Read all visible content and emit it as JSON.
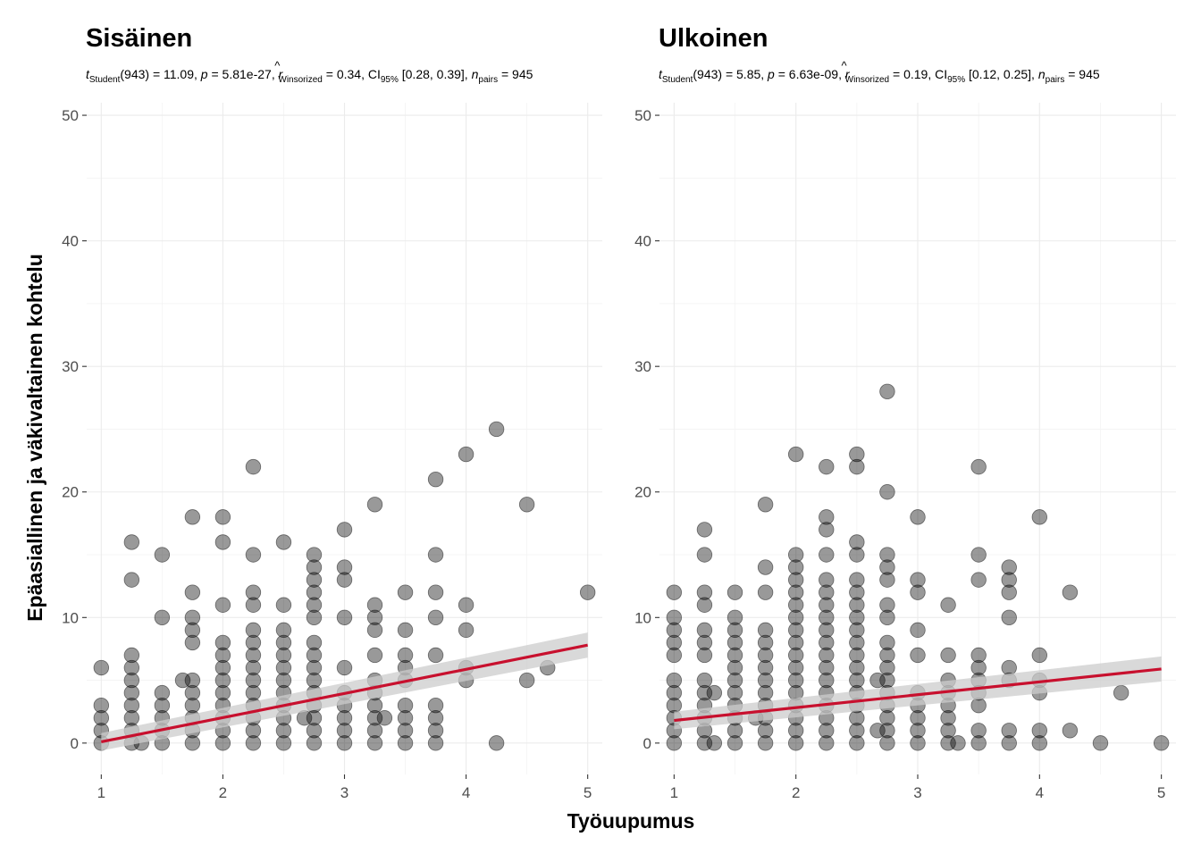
{
  "chart_data": {
    "type": "scatter",
    "xlabel": "Työuupumus",
    "ylabel": "Epäasiallinen ja väkivaltainen kohtelu",
    "xlim": [
      0.88,
      5.12
    ],
    "ylim": [
      -2.5,
      51
    ],
    "x_ticks": [
      "1",
      "2",
      "3",
      "4",
      "5"
    ],
    "y_ticks": [
      "0",
      "10",
      "20",
      "30",
      "40",
      "50"
    ],
    "grid": true,
    "point_color": "#000000",
    "point_opacity": 0.4,
    "fit_color": "#c8102e",
    "ci_color": "#cccccc",
    "panels": [
      {
        "title": "Sisäinen",
        "subtitle": {
          "t_main": "t",
          "t_sub": "Student",
          "t_val": "(943) = 11.09, ",
          "p_main": "p",
          "p_val": " = 5.81e-27, ",
          "r_main": "r",
          "r_hat": "^",
          "r_sub": "Winsorized",
          "r_val": " = 0.34, CI",
          "ci_sub": "95%",
          "ci_val": " [0.28, 0.39], ",
          "n_main": "n",
          "n_sub": "pairs",
          "n_val": " = 945"
        },
        "fit": {
          "x0": 1,
          "y0": 0.1,
          "x1": 5,
          "y1": 7.8,
          "ci0": 0.7,
          "ci1": 1.0
        },
        "points": [
          [
            1,
            0
          ],
          [
            1,
            1
          ],
          [
            1,
            2
          ],
          [
            1,
            3
          ],
          [
            1,
            6
          ],
          [
            1.25,
            0
          ],
          [
            1.25,
            1
          ],
          [
            1.25,
            2
          ],
          [
            1.25,
            3
          ],
          [
            1.25,
            4
          ],
          [
            1.25,
            5
          ],
          [
            1.25,
            6
          ],
          [
            1.25,
            7
          ],
          [
            1.25,
            13
          ],
          [
            1.25,
            16
          ],
          [
            1.33,
            0
          ],
          [
            1.5,
            0
          ],
          [
            1.5,
            1
          ],
          [
            1.5,
            2
          ],
          [
            1.5,
            3
          ],
          [
            1.5,
            4
          ],
          [
            1.5,
            10
          ],
          [
            1.5,
            15
          ],
          [
            1.67,
            5
          ],
          [
            1.75,
            0
          ],
          [
            1.75,
            1
          ],
          [
            1.75,
            2
          ],
          [
            1.75,
            3
          ],
          [
            1.75,
            4
          ],
          [
            1.75,
            5
          ],
          [
            1.75,
            8
          ],
          [
            1.75,
            9
          ],
          [
            1.75,
            10
          ],
          [
            1.75,
            12
          ],
          [
            1.75,
            18
          ],
          [
            2,
            0
          ],
          [
            2,
            1
          ],
          [
            2,
            2
          ],
          [
            2,
            3
          ],
          [
            2,
            4
          ],
          [
            2,
            5
          ],
          [
            2,
            6
          ],
          [
            2,
            7
          ],
          [
            2,
            8
          ],
          [
            2,
            11
          ],
          [
            2,
            16
          ],
          [
            2,
            18
          ],
          [
            2.25,
            0
          ],
          [
            2.25,
            1
          ],
          [
            2.25,
            2
          ],
          [
            2.25,
            3
          ],
          [
            2.25,
            4
          ],
          [
            2.25,
            5
          ],
          [
            2.25,
            6
          ],
          [
            2.25,
            7
          ],
          [
            2.25,
            8
          ],
          [
            2.25,
            9
          ],
          [
            2.25,
            11
          ],
          [
            2.25,
            12
          ],
          [
            2.25,
            15
          ],
          [
            2.25,
            22
          ],
          [
            2.5,
            0
          ],
          [
            2.5,
            1
          ],
          [
            2.5,
            2
          ],
          [
            2.5,
            3
          ],
          [
            2.5,
            4
          ],
          [
            2.5,
            5
          ],
          [
            2.5,
            6
          ],
          [
            2.5,
            7
          ],
          [
            2.5,
            8
          ],
          [
            2.5,
            9
          ],
          [
            2.5,
            11
          ],
          [
            2.5,
            16
          ],
          [
            2.67,
            2
          ],
          [
            2.75,
            0
          ],
          [
            2.75,
            1
          ],
          [
            2.75,
            2
          ],
          [
            2.75,
            3
          ],
          [
            2.75,
            4
          ],
          [
            2.75,
            5
          ],
          [
            2.75,
            6
          ],
          [
            2.75,
            7
          ],
          [
            2.75,
            8
          ],
          [
            2.75,
            10
          ],
          [
            2.75,
            11
          ],
          [
            2.75,
            12
          ],
          [
            2.75,
            13
          ],
          [
            2.75,
            14
          ],
          [
            2.75,
            15
          ],
          [
            3,
            0
          ],
          [
            3,
            1
          ],
          [
            3,
            2
          ],
          [
            3,
            3
          ],
          [
            3,
            4
          ],
          [
            3,
            6
          ],
          [
            3,
            10
          ],
          [
            3,
            13
          ],
          [
            3,
            14
          ],
          [
            3,
            17
          ],
          [
            3.25,
            0
          ],
          [
            3.25,
            1
          ],
          [
            3.25,
            2
          ],
          [
            3.25,
            3
          ],
          [
            3.25,
            4
          ],
          [
            3.25,
            5
          ],
          [
            3.25,
            7
          ],
          [
            3.25,
            9
          ],
          [
            3.25,
            10
          ],
          [
            3.25,
            11
          ],
          [
            3.25,
            19
          ],
          [
            3.33,
            2
          ],
          [
            3.5,
            0
          ],
          [
            3.5,
            1
          ],
          [
            3.5,
            2
          ],
          [
            3.5,
            3
          ],
          [
            3.5,
            5
          ],
          [
            3.5,
            6
          ],
          [
            3.5,
            7
          ],
          [
            3.5,
            9
          ],
          [
            3.5,
            12
          ],
          [
            3.75,
            0
          ],
          [
            3.75,
            1
          ],
          [
            3.75,
            2
          ],
          [
            3.75,
            3
          ],
          [
            3.75,
            7
          ],
          [
            3.75,
            10
          ],
          [
            3.75,
            12
          ],
          [
            3.75,
            15
          ],
          [
            3.75,
            21
          ],
          [
            4,
            5
          ],
          [
            4,
            6
          ],
          [
            4,
            9
          ],
          [
            4,
            11
          ],
          [
            4,
            23
          ],
          [
            4.25,
            0
          ],
          [
            4.25,
            25
          ],
          [
            4.5,
            5
          ],
          [
            4.5,
            19
          ],
          [
            4.67,
            6
          ],
          [
            5,
            12
          ]
        ]
      },
      {
        "title": "Ulkoinen",
        "subtitle": {
          "t_main": "t",
          "t_sub": "Student",
          "t_val": "(943) = 5.85, ",
          "p_main": "p",
          "p_val": " = 6.63e-09, ",
          "r_main": "r",
          "r_hat": "^",
          "r_sub": "Winsorized",
          "r_val": " = 0.19, CI",
          "ci_sub": "95%",
          "ci_val": " [0.12, 0.25], ",
          "n_main": "n",
          "n_sub": "pairs",
          "n_val": " = 945"
        },
        "fit": {
          "x0": 1,
          "y0": 1.8,
          "x1": 5,
          "y1": 5.9,
          "ci0": 0.7,
          "ci1": 1.0
        },
        "points": [
          [
            1,
            0
          ],
          [
            1,
            1
          ],
          [
            1,
            2
          ],
          [
            1,
            3
          ],
          [
            1,
            4
          ],
          [
            1,
            5
          ],
          [
            1,
            7
          ],
          [
            1,
            8
          ],
          [
            1,
            9
          ],
          [
            1,
            10
          ],
          [
            1,
            12
          ],
          [
            1.25,
            0
          ],
          [
            1.25,
            1
          ],
          [
            1.25,
            2
          ],
          [
            1.25,
            3
          ],
          [
            1.25,
            4
          ],
          [
            1.25,
            5
          ],
          [
            1.25,
            7
          ],
          [
            1.25,
            8
          ],
          [
            1.25,
            9
          ],
          [
            1.25,
            11
          ],
          [
            1.25,
            12
          ],
          [
            1.25,
            15
          ],
          [
            1.25,
            17
          ],
          [
            1.33,
            0
          ],
          [
            1.33,
            4
          ],
          [
            1.5,
            0
          ],
          [
            1.5,
            1
          ],
          [
            1.5,
            2
          ],
          [
            1.5,
            3
          ],
          [
            1.5,
            4
          ],
          [
            1.5,
            5
          ],
          [
            1.5,
            6
          ],
          [
            1.5,
            7
          ],
          [
            1.5,
            8
          ],
          [
            1.5,
            9
          ],
          [
            1.5,
            10
          ],
          [
            1.5,
            12
          ],
          [
            1.67,
            2
          ],
          [
            1.75,
            0
          ],
          [
            1.75,
            1
          ],
          [
            1.75,
            2
          ],
          [
            1.75,
            3
          ],
          [
            1.75,
            4
          ],
          [
            1.75,
            5
          ],
          [
            1.75,
            6
          ],
          [
            1.75,
            7
          ],
          [
            1.75,
            8
          ],
          [
            1.75,
            9
          ],
          [
            1.75,
            12
          ],
          [
            1.75,
            14
          ],
          [
            1.75,
            19
          ],
          [
            2,
            0
          ],
          [
            2,
            1
          ],
          [
            2,
            2
          ],
          [
            2,
            3
          ],
          [
            2,
            4
          ],
          [
            2,
            5
          ],
          [
            2,
            6
          ],
          [
            2,
            7
          ],
          [
            2,
            8
          ],
          [
            2,
            9
          ],
          [
            2,
            10
          ],
          [
            2,
            11
          ],
          [
            2,
            12
          ],
          [
            2,
            13
          ],
          [
            2,
            14
          ],
          [
            2,
            15
          ],
          [
            2,
            23
          ],
          [
            2.25,
            0
          ],
          [
            2.25,
            1
          ],
          [
            2.25,
            2
          ],
          [
            2.25,
            3
          ],
          [
            2.25,
            4
          ],
          [
            2.25,
            5
          ],
          [
            2.25,
            6
          ],
          [
            2.25,
            7
          ],
          [
            2.25,
            8
          ],
          [
            2.25,
            9
          ],
          [
            2.25,
            10
          ],
          [
            2.25,
            11
          ],
          [
            2.25,
            12
          ],
          [
            2.25,
            13
          ],
          [
            2.25,
            15
          ],
          [
            2.25,
            17
          ],
          [
            2.25,
            18
          ],
          [
            2.25,
            22
          ],
          [
            2.5,
            0
          ],
          [
            2.5,
            1
          ],
          [
            2.5,
            2
          ],
          [
            2.5,
            3
          ],
          [
            2.5,
            4
          ],
          [
            2.5,
            5
          ],
          [
            2.5,
            6
          ],
          [
            2.5,
            7
          ],
          [
            2.5,
            8
          ],
          [
            2.5,
            9
          ],
          [
            2.5,
            10
          ],
          [
            2.5,
            11
          ],
          [
            2.5,
            12
          ],
          [
            2.5,
            13
          ],
          [
            2.5,
            15
          ],
          [
            2.5,
            16
          ],
          [
            2.5,
            22
          ],
          [
            2.5,
            23
          ],
          [
            2.67,
            1
          ],
          [
            2.67,
            5
          ],
          [
            2.75,
            0
          ],
          [
            2.75,
            1
          ],
          [
            2.75,
            2
          ],
          [
            2.75,
            3
          ],
          [
            2.75,
            4
          ],
          [
            2.75,
            5
          ],
          [
            2.75,
            6
          ],
          [
            2.75,
            7
          ],
          [
            2.75,
            8
          ],
          [
            2.75,
            10
          ],
          [
            2.75,
            11
          ],
          [
            2.75,
            13
          ],
          [
            2.75,
            14
          ],
          [
            2.75,
            15
          ],
          [
            2.75,
            20
          ],
          [
            2.75,
            28
          ],
          [
            3,
            0
          ],
          [
            3,
            1
          ],
          [
            3,
            2
          ],
          [
            3,
            3
          ],
          [
            3,
            4
          ],
          [
            3,
            7
          ],
          [
            3,
            9
          ],
          [
            3,
            12
          ],
          [
            3,
            13
          ],
          [
            3,
            18
          ],
          [
            3.25,
            0
          ],
          [
            3.25,
            1
          ],
          [
            3.25,
            2
          ],
          [
            3.25,
            3
          ],
          [
            3.25,
            4
          ],
          [
            3.25,
            5
          ],
          [
            3.25,
            7
          ],
          [
            3.25,
            11
          ],
          [
            3.33,
            0
          ],
          [
            3.5,
            0
          ],
          [
            3.5,
            1
          ],
          [
            3.5,
            3
          ],
          [
            3.5,
            4
          ],
          [
            3.5,
            5
          ],
          [
            3.5,
            6
          ],
          [
            3.5,
            7
          ],
          [
            3.5,
            13
          ],
          [
            3.5,
            15
          ],
          [
            3.5,
            22
          ],
          [
            3.75,
            0
          ],
          [
            3.75,
            1
          ],
          [
            3.75,
            5
          ],
          [
            3.75,
            6
          ],
          [
            3.75,
            10
          ],
          [
            3.75,
            12
          ],
          [
            3.75,
            13
          ],
          [
            3.75,
            14
          ],
          [
            4,
            0
          ],
          [
            4,
            1
          ],
          [
            4,
            4
          ],
          [
            4,
            5
          ],
          [
            4,
            7
          ],
          [
            4,
            18
          ],
          [
            4.25,
            1
          ],
          [
            4.25,
            12
          ],
          [
            4.5,
            0
          ],
          [
            4.67,
            4
          ],
          [
            5,
            0
          ]
        ]
      }
    ]
  }
}
